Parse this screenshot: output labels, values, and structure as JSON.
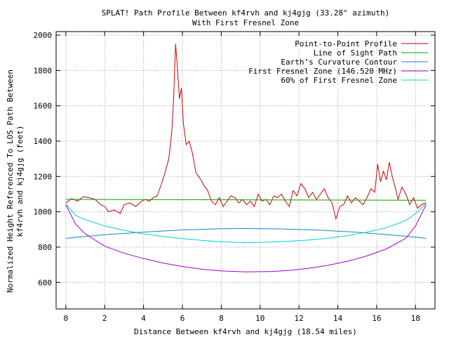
{
  "chart_data": {
    "type": "line",
    "title": "SPLAT! Path Profile Between kf4rvh and kj4gjg (33.28° azimuth)",
    "subtitle": "With First Fresnel Zone",
    "xlabel": "Distance Between kf4rvh and kj4gjg (18.54 miles)",
    "ylabel_line1": "Normalized Height Referenced To LOS Path Between",
    "ylabel_line2": "kf4rvh and kj4gjg (feet)",
    "xlim": [
      -0.5,
      19
    ],
    "ylim": [
      450,
      2020
    ],
    "x_ticks": [
      0,
      2,
      4,
      6,
      8,
      10,
      12,
      14,
      16,
      18
    ],
    "y_ticks": [
      600,
      800,
      1000,
      1200,
      1400,
      1600,
      1800,
      2000
    ],
    "grid": true,
    "legend_position": "top-right",
    "series": [
      {
        "name": "Point-to-Point Profile",
        "color": "#cc0000",
        "x": [
          0,
          0.3,
          0.6,
          0.9,
          1.2,
          1.5,
          1.8,
          2.0,
          2.2,
          2.5,
          2.8,
          3.0,
          3.3,
          3.6,
          3.9,
          4.1,
          4.3,
          4.5,
          4.7,
          4.9,
          5.1,
          5.3,
          5.45,
          5.55,
          5.65,
          5.75,
          5.85,
          5.95,
          6.05,
          6.2,
          6.35,
          6.5,
          6.7,
          6.9,
          7.1,
          7.3,
          7.5,
          7.7,
          7.9,
          8.1,
          8.3,
          8.5,
          8.7,
          8.9,
          9.1,
          9.3,
          9.5,
          9.7,
          9.9,
          10.1,
          10.3,
          10.5,
          10.7,
          10.9,
          11.1,
          11.3,
          11.5,
          11.7,
          11.9,
          12.1,
          12.3,
          12.5,
          12.7,
          12.9,
          13.1,
          13.3,
          13.5,
          13.7,
          13.9,
          14.1,
          14.3,
          14.5,
          14.7,
          14.9,
          15.1,
          15.3,
          15.5,
          15.7,
          15.9,
          16.05,
          16.2,
          16.35,
          16.5,
          16.65,
          16.8,
          16.95,
          17.1,
          17.3,
          17.5,
          17.7,
          17.9,
          18.1,
          18.3,
          18.54
        ],
        "y": [
          1050,
          1075,
          1060,
          1085,
          1080,
          1070,
          1040,
          1030,
          1000,
          1010,
          990,
          1040,
          1050,
          1030,
          1060,
          1070,
          1060,
          1080,
          1090,
          1150,
          1220,
          1300,
          1450,
          1640,
          1950,
          1800,
          1640,
          1700,
          1500,
          1380,
          1400,
          1340,
          1220,
          1190,
          1150,
          1120,
          1060,
          1040,
          1080,
          1030,
          1060,
          1090,
          1080,
          1050,
          1070,
          1040,
          1060,
          1030,
          1100,
          1060,
          1070,
          1040,
          1090,
          1080,
          1100,
          1060,
          1030,
          1120,
          1090,
          1160,
          1130,
          1080,
          1110,
          1070,
          1100,
          1130,
          1080,
          1050,
          960,
          1030,
          1040,
          1090,
          1050,
          1080,
          1060,
          1040,
          1080,
          1130,
          1110,
          1270,
          1170,
          1230,
          1180,
          1280,
          1200,
          1140,
          1070,
          1140,
          1100,
          1040,
          1080,
          1020,
          1040,
          1050
        ]
      },
      {
        "name": "Line of Sight Path",
        "color": "#00a000",
        "x": [
          0,
          18.54
        ],
        "y": [
          1070,
          1065
        ]
      },
      {
        "name": "Earth’s Curvature Contour",
        "color": "#1a80c8",
        "x": [
          0,
          2,
          4,
          6,
          8,
          9.27,
          11,
          13,
          15,
          17,
          18.54
        ],
        "y": [
          850,
          870,
          885,
          897,
          904,
          905,
          903,
          896,
          884,
          866,
          850
        ]
      },
      {
        "name": "First Fresnel Zone (146.520 MHz)",
        "color": "#a000c8",
        "x": [
          0,
          0.5,
          1,
          2,
          3,
          4,
          5,
          6,
          7,
          8,
          9.27,
          10.5,
          11.5,
          12.5,
          13.5,
          14.5,
          15.5,
          16.5,
          17.5,
          18,
          18.54
        ],
        "y": [
          1040,
          930,
          875,
          805,
          765,
          735,
          710,
          690,
          675,
          665,
          660,
          662,
          668,
          680,
          697,
          720,
          750,
          790,
          850,
          920,
          1040
        ]
      },
      {
        "name": "60% of First Fresnel Zone",
        "color": "#00d0d0",
        "x": [
          0,
          0.5,
          1,
          2,
          3,
          4,
          5,
          6,
          7,
          8,
          9.27,
          10.5,
          11.5,
          12.5,
          13.5,
          14.5,
          15.5,
          16.5,
          17.5,
          18,
          18.54
        ],
        "y": [
          1045,
          980,
          955,
          920,
          895,
          875,
          860,
          848,
          838,
          830,
          825,
          828,
          833,
          840,
          850,
          865,
          885,
          910,
          950,
          990,
          1045
        ]
      }
    ]
  }
}
